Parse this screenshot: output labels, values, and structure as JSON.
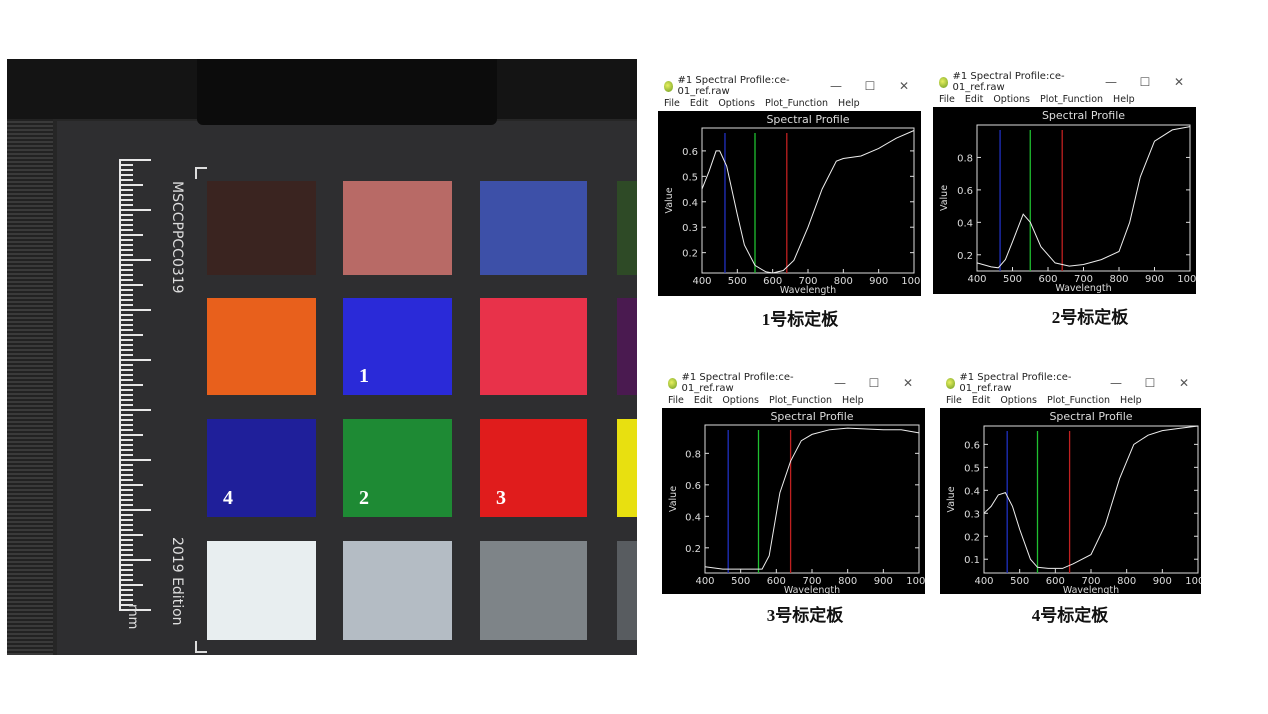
{
  "photo": {
    "board_label": "MSCCPPCC0319",
    "edition_label": "2019 Edition",
    "unit_label": "mm",
    "patch_colors": [
      [
        "#3a2420",
        "#b86a66",
        "#3d50a8",
        "#2e4a26"
      ],
      [
        "#e8601c",
        "#2a2ad8",
        "#e8324a",
        "#4a1a50"
      ],
      [
        "#1f1f9a",
        "#1e8a34",
        "#e01c1c",
        "#e8e010"
      ],
      [
        "#e8eef0",
        "#b4bcc4",
        "#7e8488",
        "#585c60"
      ]
    ],
    "markers": [
      {
        "label": "1",
        "row": 1,
        "col": 1
      },
      {
        "label": "4",
        "row": 2,
        "col": 0
      },
      {
        "label": "2",
        "row": 2,
        "col": 1
      },
      {
        "label": "3",
        "row": 2,
        "col": 2
      }
    ]
  },
  "windows": [
    {
      "title": "#1 Spectral Profile:ce-01_ref.raw",
      "menu": [
        "File",
        "Edit",
        "Options",
        "Plot_Function",
        "Help"
      ],
      "controls": [
        "—",
        "☐",
        "✕"
      ],
      "caption": "1号标定板"
    },
    {
      "title": "#1 Spectral Profile:ce-01_ref.raw",
      "menu": [
        "File",
        "Edit",
        "Options",
        "Plot_Function",
        "Help"
      ],
      "controls": [
        "—",
        "☐",
        "✕"
      ],
      "caption": "2号标定板"
    },
    {
      "title": "#1 Spectral Profile:ce-01_ref.raw",
      "menu": [
        "File",
        "Edit",
        "Options",
        "Plot_Function",
        "Help"
      ],
      "controls": [
        "—",
        "☐",
        "✕"
      ],
      "caption": "3号标定板"
    },
    {
      "title": "#1 Spectral Profile:ce-01_ref.raw",
      "menu": [
        "File",
        "Edit",
        "Options",
        "Plot_Function",
        "Help"
      ],
      "controls": [
        "—",
        "☐",
        "✕"
      ],
      "caption": "4号标定板"
    }
  ],
  "chart_data": [
    {
      "type": "line",
      "title": "Spectral Profile",
      "xlabel": "Wavelength",
      "ylabel": "Value",
      "xlim": [
        400,
        1000
      ],
      "ylim": [
        0.12,
        0.69
      ],
      "xticks": [
        400,
        500,
        600,
        700,
        800,
        900,
        1000
      ],
      "yticks": [
        0.2,
        0.3,
        0.4,
        0.5,
        0.6
      ],
      "band_lines": [
        {
          "x": 465,
          "color": "#2030c0"
        },
        {
          "x": 550,
          "color": "#20c030"
        },
        {
          "x": 640,
          "color": "#c02020"
        }
      ],
      "x": [
        400,
        420,
        440,
        450,
        470,
        500,
        520,
        550,
        580,
        600,
        630,
        660,
        700,
        740,
        780,
        800,
        850,
        900,
        950,
        1000
      ],
      "y": [
        0.45,
        0.52,
        0.6,
        0.6,
        0.54,
        0.35,
        0.23,
        0.15,
        0.125,
        0.12,
        0.13,
        0.17,
        0.3,
        0.45,
        0.56,
        0.57,
        0.58,
        0.61,
        0.65,
        0.68
      ]
    },
    {
      "type": "line",
      "title": "Spectral Profile",
      "xlabel": "Wavelength",
      "ylabel": "Value",
      "xlim": [
        400,
        1000
      ],
      "ylim": [
        0.1,
        1.0
      ],
      "xticks": [
        400,
        500,
        600,
        700,
        800,
        900,
        1000
      ],
      "yticks": [
        0.2,
        0.4,
        0.6,
        0.8
      ],
      "band_lines": [
        {
          "x": 465,
          "color": "#2030c0"
        },
        {
          "x": 550,
          "color": "#20c030"
        },
        {
          "x": 640,
          "color": "#c02020"
        }
      ],
      "x": [
        400,
        440,
        460,
        480,
        500,
        530,
        550,
        580,
        620,
        660,
        700,
        750,
        800,
        830,
        860,
        900,
        950,
        1000
      ],
      "y": [
        0.15,
        0.125,
        0.12,
        0.17,
        0.28,
        0.45,
        0.4,
        0.25,
        0.15,
        0.13,
        0.14,
        0.17,
        0.22,
        0.4,
        0.68,
        0.9,
        0.97,
        0.99
      ]
    },
    {
      "type": "line",
      "title": "Spectral Profile",
      "xlabel": "Wavelength",
      "ylabel": "Value",
      "xlim": [
        400,
        1000
      ],
      "ylim": [
        0.04,
        0.98
      ],
      "xticks": [
        400,
        500,
        600,
        700,
        800,
        900,
        1000
      ],
      "yticks": [
        0.2,
        0.4,
        0.6,
        0.8
      ],
      "band_lines": [
        {
          "x": 465,
          "color": "#2030c0"
        },
        {
          "x": 550,
          "color": "#20c030"
        },
        {
          "x": 640,
          "color": "#c02020"
        }
      ],
      "x": [
        400,
        450,
        500,
        560,
        580,
        610,
        640,
        670,
        700,
        750,
        800,
        900,
        950,
        1000
      ],
      "y": [
        0.08,
        0.065,
        0.065,
        0.065,
        0.15,
        0.55,
        0.75,
        0.88,
        0.92,
        0.95,
        0.96,
        0.95,
        0.95,
        0.93
      ]
    },
    {
      "type": "line",
      "title": "Spectral Profile",
      "xlabel": "Wavelength",
      "ylabel": "Value",
      "xlim": [
        400,
        1000
      ],
      "ylim": [
        0.04,
        0.68
      ],
      "xticks": [
        400,
        500,
        600,
        700,
        800,
        900,
        1000
      ],
      "yticks": [
        0.1,
        0.2,
        0.3,
        0.4,
        0.5,
        0.6
      ],
      "band_lines": [
        {
          "x": 465,
          "color": "#2030c0"
        },
        {
          "x": 550,
          "color": "#20c030"
        },
        {
          "x": 640,
          "color": "#c02020"
        }
      ],
      "x": [
        400,
        420,
        440,
        460,
        480,
        500,
        530,
        550,
        580,
        620,
        650,
        700,
        740,
        780,
        820,
        860,
        900,
        950,
        1000
      ],
      "y": [
        0.3,
        0.33,
        0.38,
        0.39,
        0.33,
        0.23,
        0.1,
        0.065,
        0.06,
        0.06,
        0.08,
        0.12,
        0.25,
        0.45,
        0.6,
        0.64,
        0.66,
        0.67,
        0.68
      ]
    }
  ]
}
